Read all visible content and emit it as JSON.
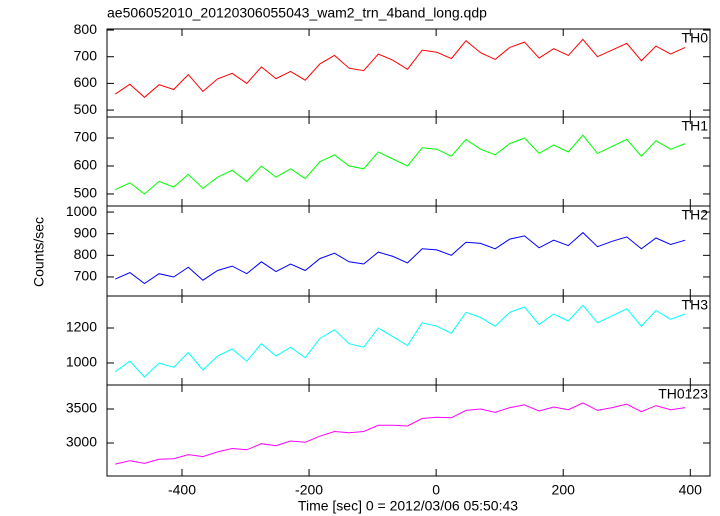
{
  "title": "ae506052010_20120306055043_wam2_trn_4band_long.qdp",
  "x_label": "Time [sec] 0 = 2012/03/06 05:50:43",
  "y_label": "Counts/sec",
  "chart_data": [
    {
      "type": "line",
      "label": "TH0",
      "color": "#ff0000",
      "x": [
        -505,
        -482,
        -459,
        -436,
        -413,
        -390,
        -367,
        -344,
        -321,
        -298,
        -275,
        -252,
        -229,
        -206,
        -183,
        -160,
        -137,
        -114,
        -91,
        -68,
        -45,
        -22,
        1,
        24,
        47,
        70,
        93,
        116,
        139,
        162,
        185,
        208,
        231,
        254,
        277,
        300,
        323,
        346,
        369,
        392
      ],
      "values": [
        560,
        597,
        548,
        595,
        577,
        633,
        570,
        617,
        638,
        600,
        662,
        618,
        645,
        612,
        673,
        705,
        657,
        648,
        710,
        687,
        653,
        725,
        717,
        693,
        760,
        715,
        690,
        735,
        755,
        695,
        730,
        705,
        765,
        700,
        725,
        750,
        685,
        740,
        710,
        735
      ],
      "xlim": [
        -518,
        431
      ],
      "ylim": [
        474,
        804
      ],
      "yticks": [
        500,
        600,
        700,
        800
      ]
    },
    {
      "type": "line",
      "label": "TH1",
      "color": "#00ff00",
      "x": [
        -505,
        -482,
        -459,
        -436,
        -413,
        -390,
        -367,
        -344,
        -321,
        -298,
        -275,
        -252,
        -229,
        -206,
        -183,
        -160,
        -137,
        -114,
        -91,
        -68,
        -45,
        -22,
        1,
        24,
        47,
        70,
        93,
        116,
        139,
        162,
        185,
        208,
        231,
        254,
        277,
        300,
        323,
        346,
        369,
        392
      ],
      "values": [
        515,
        540,
        500,
        545,
        525,
        570,
        520,
        560,
        585,
        545,
        600,
        560,
        590,
        555,
        615,
        640,
        600,
        590,
        650,
        625,
        600,
        665,
        660,
        635,
        695,
        660,
        640,
        680,
        700,
        645,
        675,
        650,
        710,
        645,
        670,
        695,
        635,
        690,
        660,
        680
      ],
      "xlim": [
        -518,
        431
      ],
      "ylim": [
        457,
        775
      ],
      "yticks": [
        500,
        600,
        700
      ]
    },
    {
      "type": "line",
      "label": "TH2",
      "color": "#0000ff",
      "x": [
        -505,
        -482,
        -459,
        -436,
        -413,
        -390,
        -367,
        -344,
        -321,
        -298,
        -275,
        -252,
        -229,
        -206,
        -183,
        -160,
        -137,
        -114,
        -91,
        -68,
        -45,
        -22,
        1,
        24,
        47,
        70,
        93,
        116,
        139,
        162,
        185,
        208,
        231,
        254,
        277,
        300,
        323,
        346,
        369,
        392
      ],
      "values": [
        690,
        720,
        670,
        715,
        700,
        745,
        685,
        730,
        750,
        715,
        770,
        725,
        760,
        730,
        785,
        810,
        770,
        760,
        815,
        795,
        765,
        830,
        825,
        800,
        860,
        855,
        830,
        875,
        890,
        835,
        870,
        845,
        905,
        840,
        865,
        885,
        830,
        880,
        850,
        870
      ],
      "xlim": [
        -518,
        431
      ],
      "ylim": [
        612,
        1028
      ],
      "yticks": [
        700,
        800,
        900,
        1000
      ]
    },
    {
      "type": "line",
      "label": "TH3",
      "color": "#00ffff",
      "x": [
        -505,
        -482,
        -459,
        -436,
        -413,
        -390,
        -367,
        -344,
        -321,
        -298,
        -275,
        -252,
        -229,
        -206,
        -183,
        -160,
        -137,
        -114,
        -91,
        -68,
        -45,
        -22,
        1,
        24,
        47,
        70,
        93,
        116,
        139,
        162,
        185,
        208,
        231,
        254,
        277,
        300,
        323,
        346,
        369,
        392
      ],
      "values": [
        950,
        1010,
        920,
        1000,
        975,
        1060,
        960,
        1040,
        1080,
        1010,
        1110,
        1040,
        1090,
        1030,
        1140,
        1190,
        1110,
        1090,
        1200,
        1150,
        1100,
        1230,
        1210,
        1170,
        1290,
        1260,
        1210,
        1290,
        1320,
        1220,
        1280,
        1240,
        1330,
        1230,
        1270,
        1310,
        1210,
        1300,
        1250,
        1280
      ],
      "xlim": [
        -518,
        431
      ],
      "ylim": [
        874,
        1383
      ],
      "yticks": [
        1000,
        1200
      ]
    },
    {
      "type": "line",
      "label": "TH0123",
      "color": "#ff00ff",
      "x": [
        -505,
        -482,
        -459,
        -436,
        -413,
        -390,
        -367,
        -344,
        -321,
        -298,
        -275,
        -252,
        -229,
        -206,
        -183,
        -160,
        -137,
        -114,
        -91,
        -68,
        -45,
        -22,
        1,
        24,
        47,
        70,
        93,
        116,
        139,
        162,
        185,
        208,
        231,
        254,
        277,
        300,
        323,
        346,
        369,
        392
      ],
      "values": [
        2690,
        2740,
        2700,
        2760,
        2770,
        2830,
        2800,
        2870,
        2920,
        2900,
        2990,
        2960,
        3030,
        3010,
        3100,
        3170,
        3150,
        3170,
        3260,
        3260,
        3250,
        3360,
        3380,
        3370,
        3480,
        3500,
        3450,
        3520,
        3560,
        3470,
        3530,
        3490,
        3590,
        3480,
        3520,
        3570,
        3460,
        3550,
        3490,
        3520
      ],
      "xlim": [
        -518,
        431
      ],
      "ylim": [
        2515,
        3853
      ],
      "yticks": [
        3000,
        3500
      ],
      "xticks": [
        -400,
        -200,
        0,
        200,
        400
      ]
    }
  ]
}
